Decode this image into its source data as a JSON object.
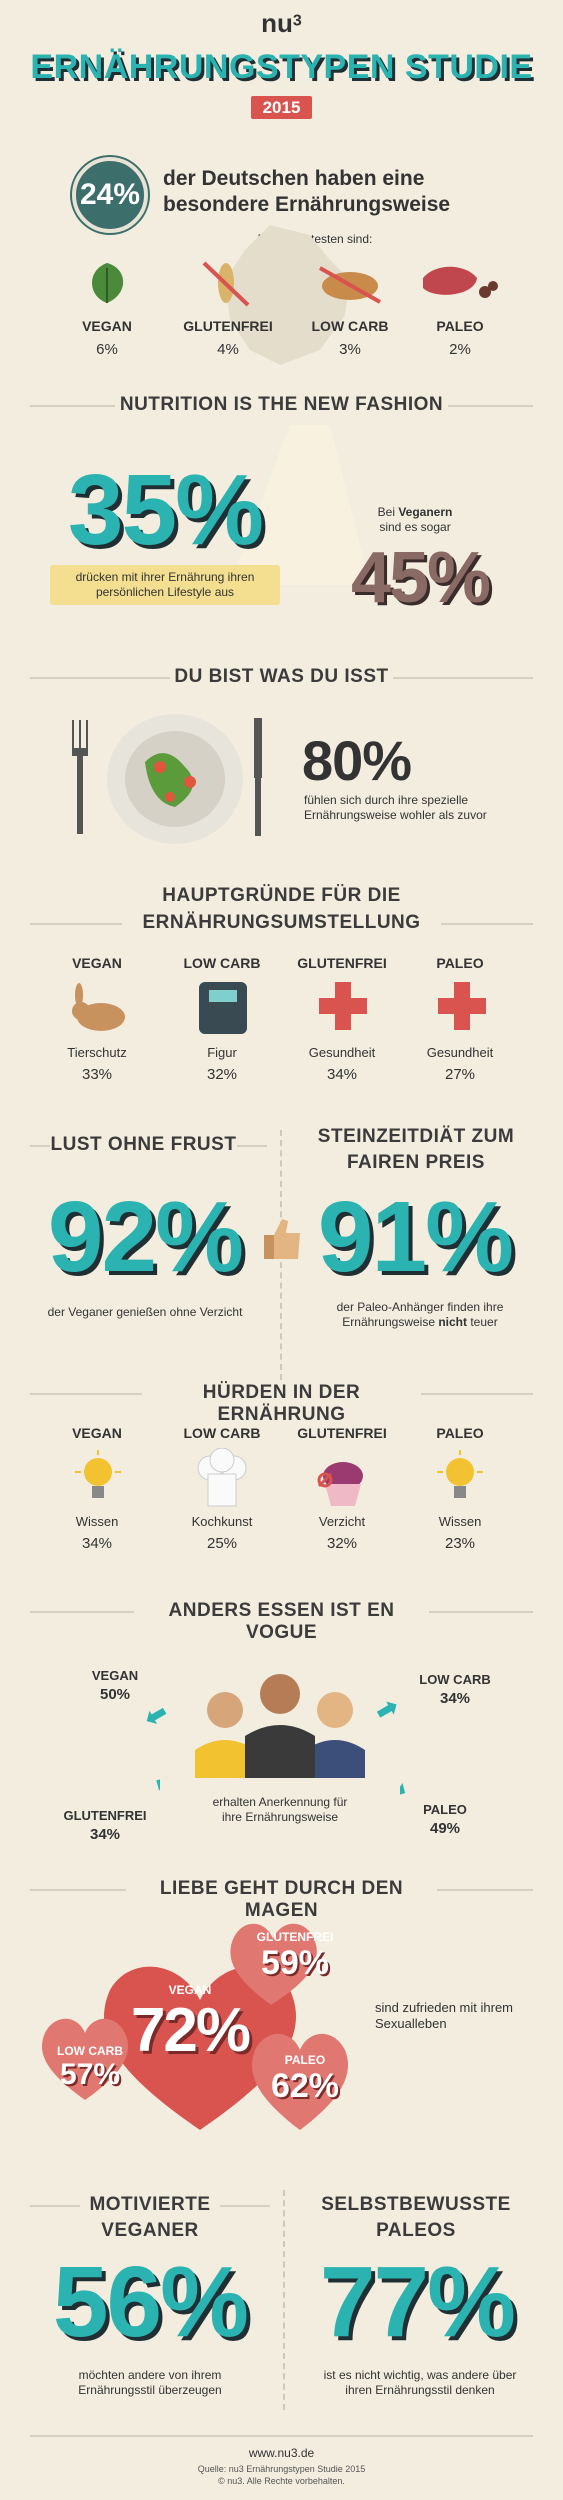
{
  "header": {
    "brand": "nu",
    "brand_sup": "3",
    "title": "ERNÄHRUNGSTYPEN STUDIE",
    "year": "2015"
  },
  "intro": {
    "percent": "24%",
    "text_line1": "der Deutschen haben eine",
    "text_line2": "besondere Ernährungsweise",
    "subtitle": "Die beliebtesten sind:",
    "types": [
      {
        "label": "VEGAN",
        "value": "6%"
      },
      {
        "label": "GLUTENFREI",
        "value": "4%"
      },
      {
        "label": "LOW CARB",
        "value": "3%"
      },
      {
        "label": "PALEO",
        "value": "2%"
      }
    ]
  },
  "fashion": {
    "title": "NUTRITION IS THE NEW FASHION",
    "big1": "35%",
    "text1_line1": "drücken mit ihrer Ernährung ihren",
    "text1_line2": "persönlichen Lifestyle aus",
    "text2_line1_pre": "Bei ",
    "text2_line1_bold": "Veganern",
    "text2_line2": "sind es sogar",
    "big2": "45%"
  },
  "eat": {
    "title": "DU BIST WAS DU ISST",
    "big": "80%",
    "text_line1": "fühlen sich durch ihre spezielle",
    "text_line2": "Ernährungsweise wohler als zuvor"
  },
  "reasons": {
    "title_line1": "HAUPTGRÜNDE FÜR DIE",
    "title_line2": "ERNÄHRUNGSUMSTELLUNG",
    "items": [
      {
        "label": "VEGAN",
        "reason": "Tierschutz",
        "value": "33%"
      },
      {
        "label": "LOW CARB",
        "reason": "Figur",
        "value": "32%"
      },
      {
        "label": "GLUTENFREI",
        "reason": "Gesundheit",
        "value": "34%"
      },
      {
        "label": "PALEO",
        "reason": "Gesundheit",
        "value": "27%"
      }
    ]
  },
  "lust": {
    "title": "LUST OHNE FRUST",
    "big": "92%",
    "text": "der Veganer genießen ohne Verzicht"
  },
  "stone": {
    "title_line1": "STEINZEITDIÄT ZUM",
    "title_line2": "FAIREN PREIS",
    "big": "91%",
    "text_line1": "der Paleo-Anhänger finden ihre",
    "text_line2_pre": "Ernährungsweise ",
    "text_line2_bold": "nicht",
    "text_line2_post": " teuer"
  },
  "hurdles": {
    "title": "HÜRDEN IN DER ERNÄHRUNG",
    "items": [
      {
        "label": "VEGAN",
        "reason": "Wissen",
        "value": "34%"
      },
      {
        "label": "LOW CARB",
        "reason": "Kochkunst",
        "value": "25%"
      },
      {
        "label": "GLUTENFREI",
        "reason": "Verzicht",
        "value": "32%"
      },
      {
        "label": "PALEO",
        "reason": "Wissen",
        "value": "23%"
      }
    ]
  },
  "vogue": {
    "title": "ANDERS ESSEN IST EN VOGUE",
    "vegan_label": "VEGAN",
    "vegan_value": "50%",
    "lowcarb_label": "LOW CARB",
    "lowcarb_value": "34%",
    "gluten_label": "GLUTENFREI",
    "gluten_value": "34%",
    "paleo_label": "PALEO",
    "paleo_value": "49%",
    "text_line1": "erhalten Anerkennung für",
    "text_line2": "ihre Ernährungsweise"
  },
  "love": {
    "title": "LIEBE GEHT DURCH DEN MAGEN",
    "vegan_label": "VEGAN",
    "vegan_value": "72%",
    "gluten_label": "GLUTENFREI",
    "gluten_value": "59%",
    "lowcarb_label": "LOW CARB",
    "lowcarb_value": "57%",
    "paleo_label": "PALEO",
    "paleo_value": "62%",
    "text_line1": "sind zufrieden mit ihrem",
    "text_line2": "Sexualleben"
  },
  "motivated": {
    "title_line1": "MOTIVIERTE",
    "title_line2": "VEGANER",
    "big": "56%",
    "text_line1": "möchten andere von ihrem",
    "text_line2": "Ernährungsstil überzeugen"
  },
  "confident": {
    "title_line1": "SELBSTBEWUSSTE",
    "title_line2": "PALEOS",
    "big": "77%",
    "text_line1": "ist es nicht wichtig, was andere über",
    "text_line2": "ihren Ernährungsstil denken"
  },
  "footer": {
    "url": "www.nu3.de",
    "source": "Quelle: nu3 Ernährungstypen Studie 2015",
    "copyright": "© nu3. Alle Rechte vorbehalten."
  },
  "colors": {
    "teal": "#2bb3b1",
    "red": "#d9534f",
    "background": "#f3ede0"
  }
}
